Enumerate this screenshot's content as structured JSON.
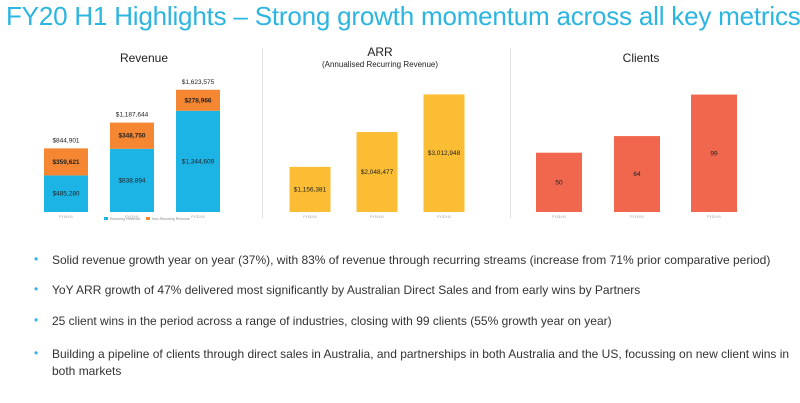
{
  "title": "FY20 H1 Highlights – Strong growth momentum across all key metrics",
  "colors": {
    "accent": "#2bb5e0",
    "recurring": "#1bb4e5",
    "nonrecurring": "#f58733",
    "arr": "#fbbd33",
    "clients": "#f0674d"
  },
  "chart_data": [
    {
      "type": "bar",
      "stacked": true,
      "title": "Revenue",
      "categories": [
        "FY18 H1",
        "FY19 H1",
        "FY20 H1"
      ],
      "series": [
        {
          "name": "Recurring Revenue",
          "values": [
            485280,
            838894,
            1344609
          ],
          "labels": [
            "$485,280",
            "$838,894",
            "$1,344,609"
          ]
        },
        {
          "name": "Non-Recurring Revenue",
          "values": [
            359621,
            348750,
            278966
          ],
          "labels": [
            "$359,621",
            "$348,750",
            "$278,966"
          ]
        }
      ],
      "totals": [
        "$844,901",
        "$1,187,644",
        "$1,623,575"
      ],
      "ylim": [
        0,
        1700000
      ]
    },
    {
      "type": "bar",
      "title": "ARR",
      "subtitle": "(Annualised Recurring Revenue)",
      "categories": [
        "FY18 H1",
        "FY19 H1",
        "FY20 H1"
      ],
      "values": [
        1156381,
        2048477,
        3012948
      ],
      "labels": [
        "$1,156,381",
        "$2,048,477",
        "$3,012,948"
      ],
      "ylim": [
        0,
        3100000
      ]
    },
    {
      "type": "bar",
      "title": "Clients",
      "categories": [
        "FY18 H1",
        "FY19 H1",
        "FY20 H1"
      ],
      "values": [
        50,
        64,
        99
      ],
      "labels": [
        "50",
        "64",
        "99"
      ],
      "ylim": [
        0,
        102
      ]
    }
  ],
  "bullets": [
    "Solid revenue growth year on year (37%), with 83% of revenue through recurring streams (increase from 71% prior comparative period)",
    "YoY ARR growth of 47% delivered most significantly by Australian Direct Sales and from early wins by Partners",
    "25 client wins in the period across a range of industries, closing with 99 clients (55% growth year on year)",
    "Building a pipeline of clients through direct sales in Australia, and partnerships in both Australia and the US, focussing on new client wins in both markets"
  ]
}
